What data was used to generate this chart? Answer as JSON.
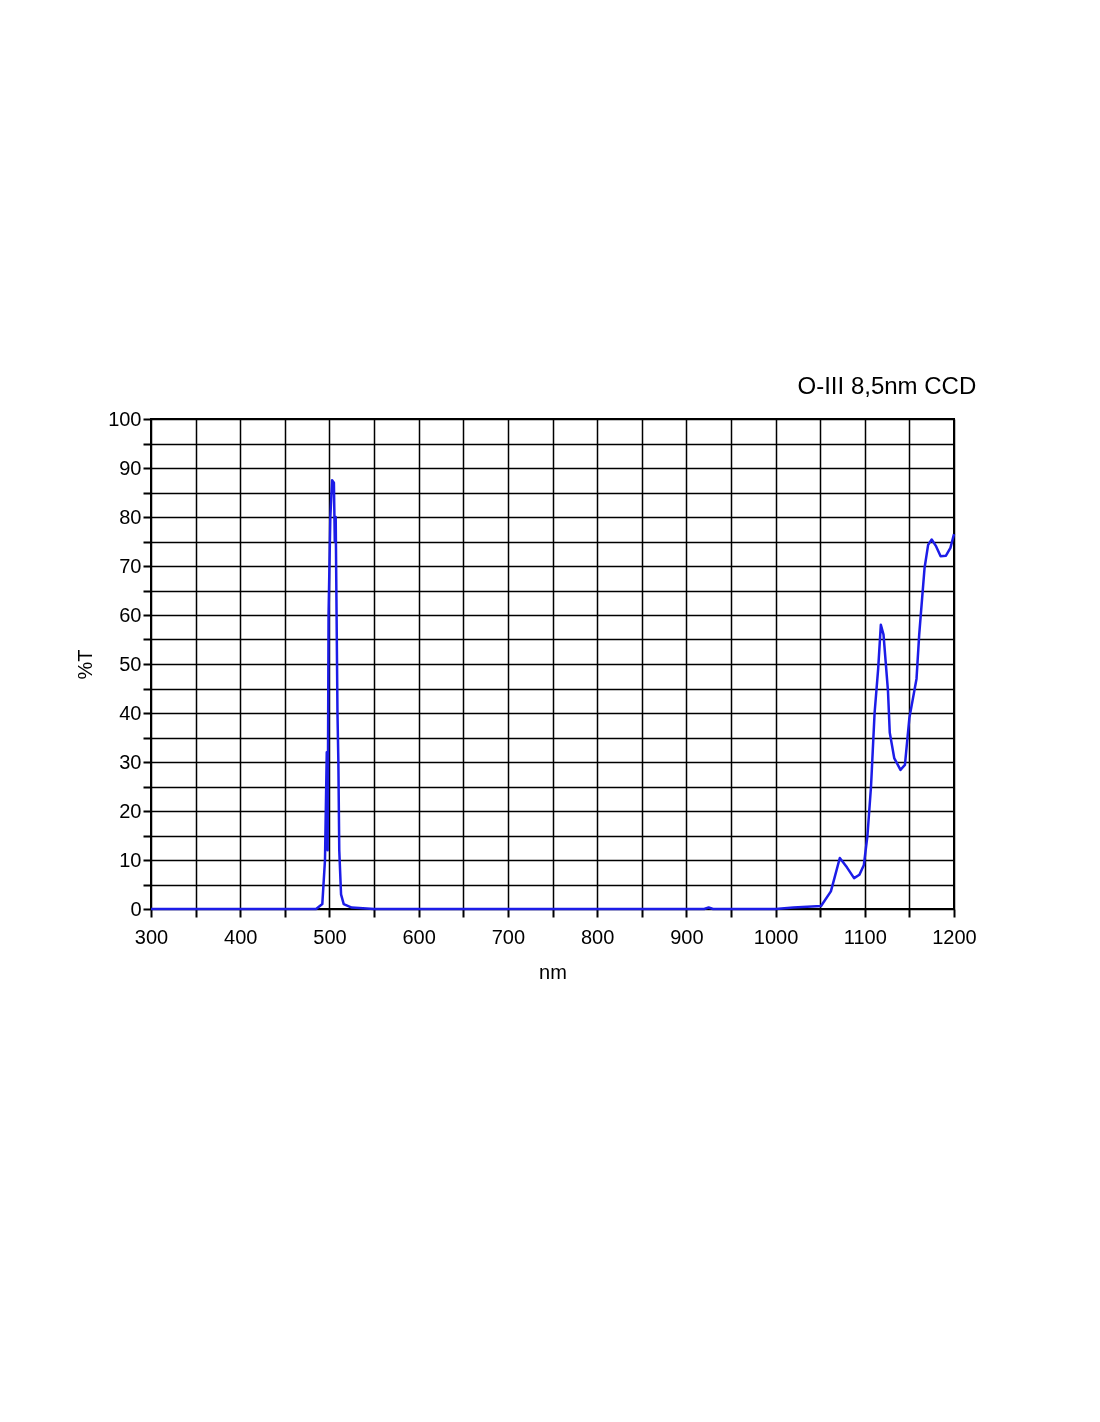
{
  "chart_data": {
    "type": "line",
    "title": "O-III 8,5nm CCD",
    "xlabel": "nm",
    "ylabel": "%T",
    "xlim": [
      300,
      1200
    ],
    "ylim": [
      0,
      100
    ],
    "xticks": [
      300,
      {
        "value": 350,
        "label": null
      },
      400,
      {
        "value": 450,
        "label": null
      },
      500,
      {
        "value": 550,
        "label": null
      },
      600,
      {
        "value": 650,
        "label": null
      },
      700,
      {
        "value": 750,
        "label": null
      },
      800,
      {
        "value": 850,
        "label": null
      },
      900,
      {
        "value": 950,
        "label": null
      },
      1000,
      {
        "value": 1050,
        "label": null
      },
      1100,
      {
        "value": 1150,
        "label": null
      },
      1200
    ],
    "yticks": [
      0,
      {
        "value": 5,
        "label": null
      },
      10,
      {
        "value": 15,
        "label": null
      },
      20,
      {
        "value": 25,
        "label": null
      },
      30,
      {
        "value": 35,
        "label": null
      },
      40,
      {
        "value": 45,
        "label": null
      },
      50,
      {
        "value": 55,
        "label": null
      },
      60,
      {
        "value": 65,
        "label": null
      },
      70,
      {
        "value": 75,
        "label": null
      },
      80,
      {
        "value": 85,
        "label": null
      },
      90,
      {
        "value": 95,
        "label": null
      },
      100
    ],
    "grid": true,
    "marker": "none",
    "line_style": "solid",
    "series": [
      {
        "color": "#1c1ce8",
        "x": [
          300,
          485,
          492,
          495,
          497,
          498,
          499,
          501,
          503,
          505,
          506,
          507,
          508,
          509,
          510,
          511,
          513,
          516,
          525,
          550,
          920,
          925,
          930,
          1000,
          1020,
          1051,
          1062,
          1066,
          1072,
          1080,
          1088,
          1094,
          1099,
          1103,
          1107,
          1111,
          1115,
          1118,
          1121,
          1126,
          1128,
          1133,
          1140,
          1145,
          1150,
          1158,
          1161,
          1167,
          1171,
          1175,
          1180,
          1185,
          1191,
          1196,
          1200
        ],
        "values": [
          0,
          0,
          1,
          10,
          32,
          12,
          60,
          80,
          87.5,
          87,
          75,
          80,
          60,
          40,
          30,
          12,
          3,
          1,
          0.3,
          0,
          0,
          0.3,
          0,
          0,
          0.3,
          0.6,
          3.6,
          6.3,
          10.4,
          8.5,
          6.3,
          7,
          9,
          15,
          25,
          40,
          49,
          58,
          56,
          44.5,
          36,
          30.8,
          28.4,
          29.4,
          39,
          47,
          56,
          69.6,
          74.3,
          75.4,
          74,
          72,
          72.1,
          73.7,
          76.5
        ]
      }
    ]
  }
}
